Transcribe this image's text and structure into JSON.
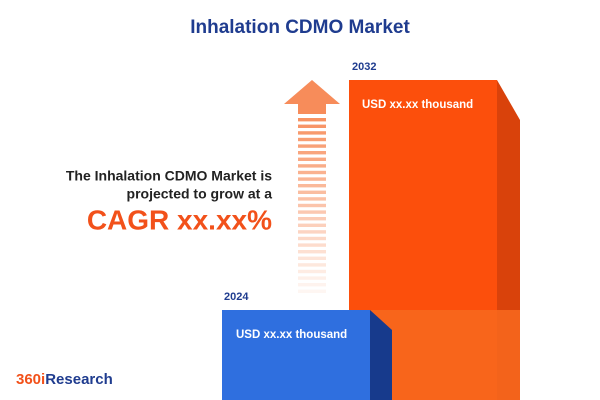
{
  "title": "Inhalation CDMO Market",
  "text": {
    "line1": "The Inhalation CDMO Market is",
    "line2": "projected to grow at a",
    "cagr": "CAGR xx.xx%"
  },
  "bars": [
    {
      "year": "2024",
      "label": "USD xx.xx thousand"
    },
    {
      "year": "2032",
      "label": "USD xx.xx thousand"
    }
  ],
  "logo": {
    "part1": "360i",
    "part2": "Research"
  }
}
